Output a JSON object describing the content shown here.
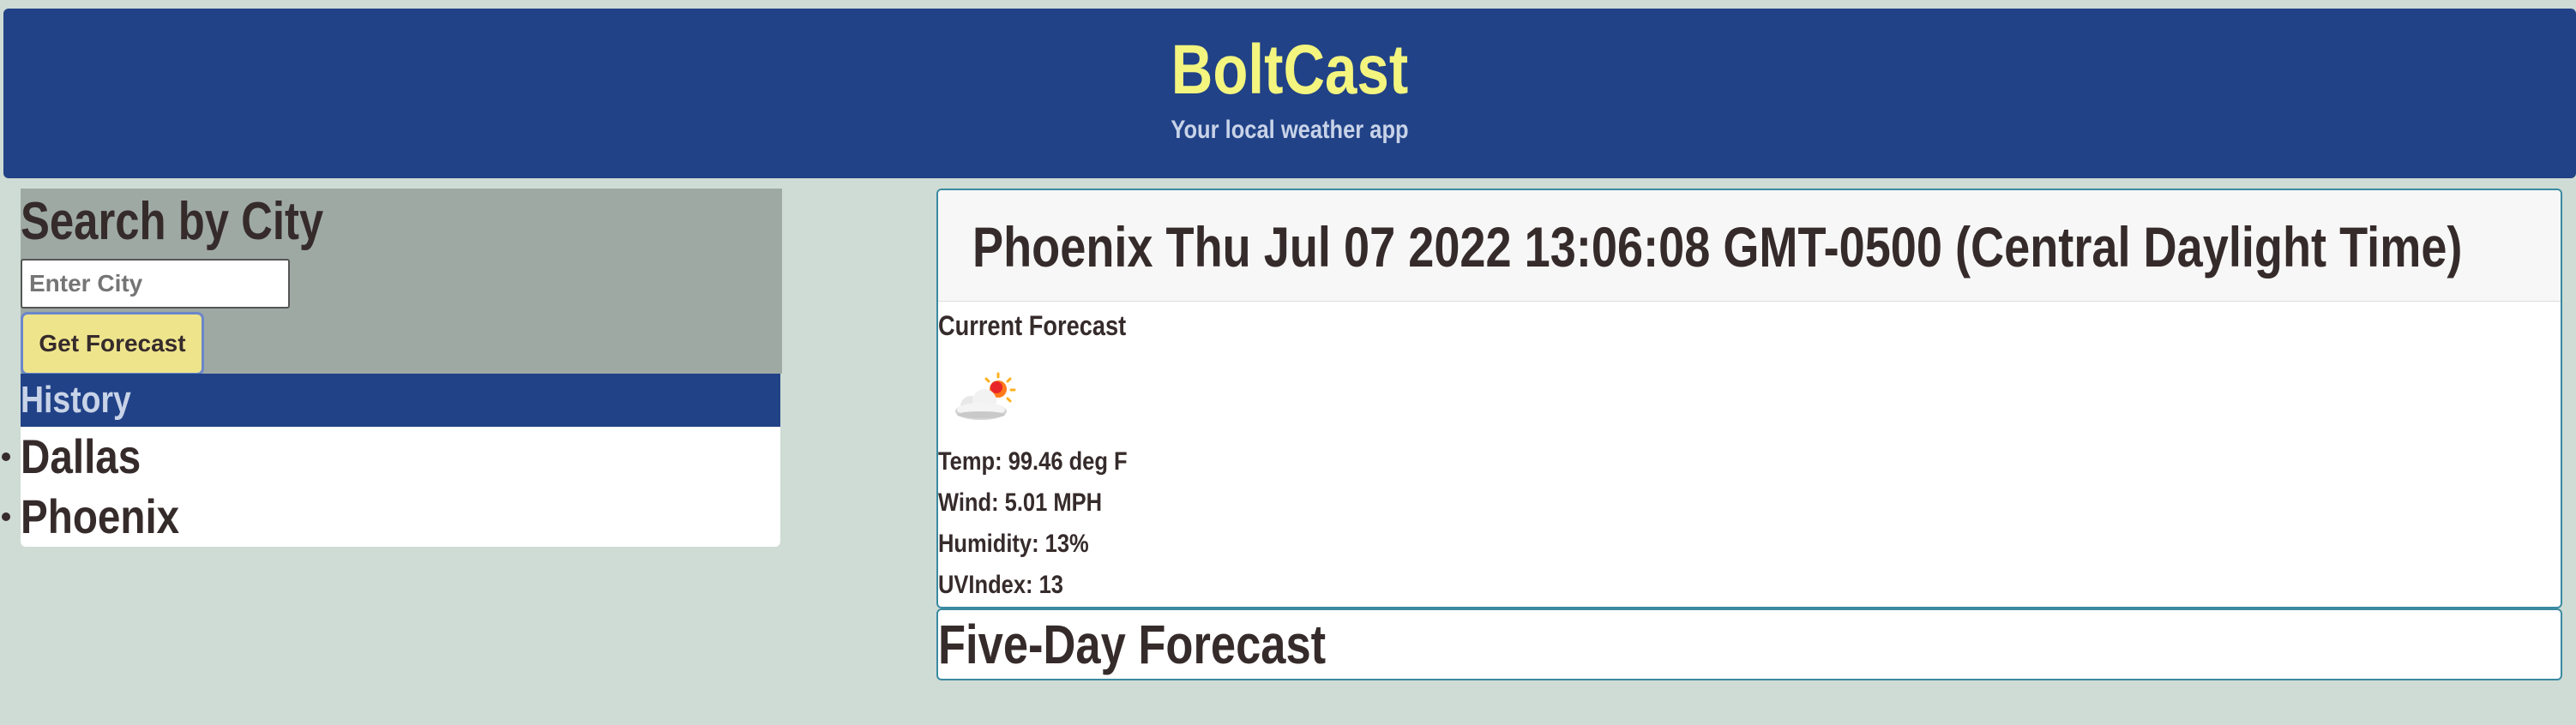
{
  "header": {
    "title": "BoltCast",
    "tagline": "Your local weather app"
  },
  "search": {
    "heading": "Search by City",
    "input_value": "",
    "input_placeholder": "Enter City",
    "button_label": "Get Forecast"
  },
  "history": {
    "heading": "History",
    "items": [
      {
        "label": "Dallas"
      },
      {
        "label": "Phoenix"
      }
    ]
  },
  "current": {
    "title": "Phoenix Thu Jul 07 2022 13:06:08 GMT-0500 (Central Daylight Time)",
    "label": "Current Forecast",
    "icon": "partly-cloudy-day-icon",
    "temp": "Temp: 99.46 deg F",
    "wind": "Wind: 5.01 MPH",
    "humidity": "Humidity: 13%",
    "uv": "UVIndex: 13"
  },
  "five_day": {
    "heading": "Five-Day Forecast"
  },
  "colors": {
    "background": "#cfdbd5",
    "header": "#214287",
    "brand": "#f3f57f",
    "button": "#eee48c",
    "text": "#362b2b"
  }
}
